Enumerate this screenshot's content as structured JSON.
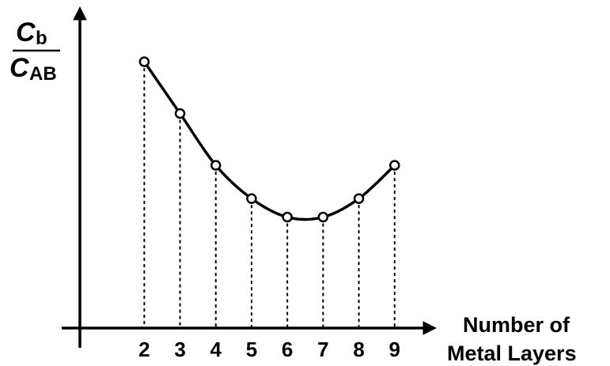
{
  "chart_data": {
    "type": "line",
    "x": [
      2,
      3,
      4,
      5,
      6,
      7,
      8,
      9
    ],
    "values": [
      3.6,
      2.9,
      2.2,
      1.75,
      1.5,
      1.5,
      1.75,
      2.2
    ],
    "xlabel_lines": [
      "Number of",
      "Metal Layers"
    ],
    "ylabel": {
      "numerator_main": "C",
      "numerator_sub": "b",
      "denominator_main": "C",
      "denominator_sub": "AB"
    },
    "ylim": [
      0,
      4.2
    ],
    "xlim": [
      0.2,
      10.2
    ],
    "grid": false,
    "marker": "open-circle",
    "drop_lines": "dashed"
  }
}
